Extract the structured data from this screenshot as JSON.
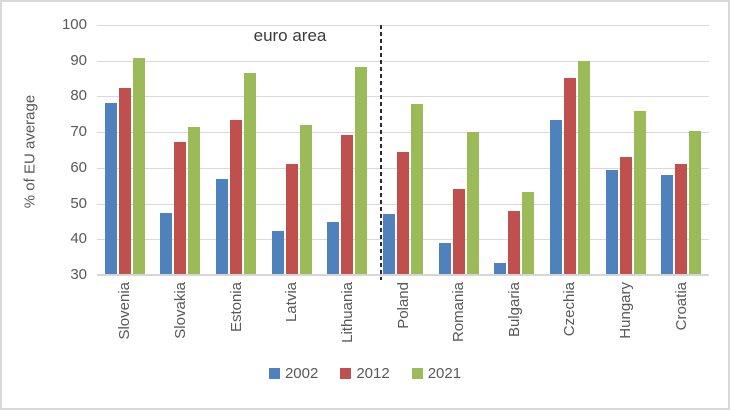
{
  "chart_data": {
    "type": "bar",
    "title": "",
    "ylabel": "% of EU average",
    "ylim": [
      30,
      100
    ],
    "yticks": [
      100,
      90,
      80,
      70,
      60,
      50,
      40,
      30
    ],
    "grid": true,
    "legend_position": "bottom",
    "categories": [
      "Slovenia",
      "Slovakia",
      "Estonia",
      "Latvia",
      "Lithuania",
      "Poland",
      "Romania",
      "Bulgaria",
      "Czechia",
      "Hungary",
      "Croatia"
    ],
    "series": [
      {
        "name": "2002",
        "color": "#4F81BD",
        "values": [
          78.3,
          47.3,
          56.8,
          42.3,
          44.8,
          47.0,
          39.0,
          33.5,
          73.5,
          59.3,
          58.0
        ]
      },
      {
        "name": "2012",
        "color": "#C0504D",
        "values": [
          82.5,
          67.2,
          73.5,
          61.0,
          69.3,
          64.5,
          54.0,
          48.0,
          85.3,
          63.0,
          61.0
        ]
      },
      {
        "name": "2021",
        "color": "#9BBB59",
        "values": [
          90.7,
          71.5,
          86.7,
          72.0,
          88.3,
          78.0,
          70.0,
          53.3,
          90.0,
          76.0,
          70.3
        ]
      }
    ],
    "annotation": {
      "text": "euro area"
    },
    "separator_after_category": "Lithuania"
  },
  "colors": {
    "gridline": "#d9d9d9",
    "axis_text": "#595959",
    "annotation_text": "#3b3b3b",
    "separator": "#2b2b2b",
    "border": "#d9d9d9"
  }
}
